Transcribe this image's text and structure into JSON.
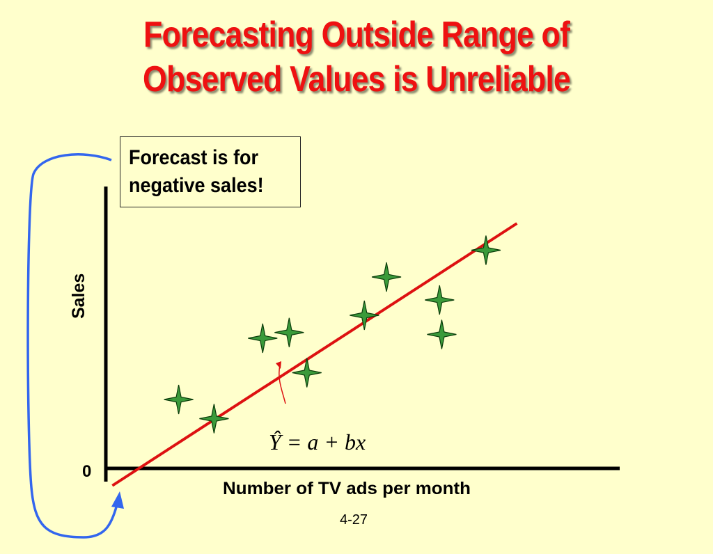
{
  "title": {
    "line1": "Forecasting Outside Range of",
    "line2": "Observed Values is Unreliable",
    "color": "#ee1111"
  },
  "callout": {
    "line1": "Forecast is for",
    "line2": "negative sales!"
  },
  "equation": {
    "text": "Ŷ = a + bx"
  },
  "slide_number": "4-27",
  "chart_data": {
    "type": "scatter",
    "title": "",
    "xlabel": "Number of TV ads per month",
    "ylabel": "Sales",
    "y_tick_labels": [
      "0"
    ],
    "ticks_numeric": false,
    "grid": false,
    "series": [
      {
        "x": [
          1.6,
          2.4,
          3.5,
          4.1,
          4.5,
          5.8,
          6.3,
          7.5,
          7.55,
          8.55
        ],
        "y": [
          1.8,
          1.3,
          3.4,
          3.55,
          2.5,
          4.0,
          5.0,
          4.4,
          3.5,
          5.7
        ]
      }
    ],
    "regression_line": {
      "label": "Ŷ = a + bx",
      "x": [
        0.1,
        9.25
      ],
      "y": [
        -0.45,
        6.4
      ]
    },
    "colors": {
      "points": "#3a9a3a",
      "point_outline": "#0b3d0b",
      "line": "#dd1111",
      "arrow": "#3366ee"
    }
  }
}
